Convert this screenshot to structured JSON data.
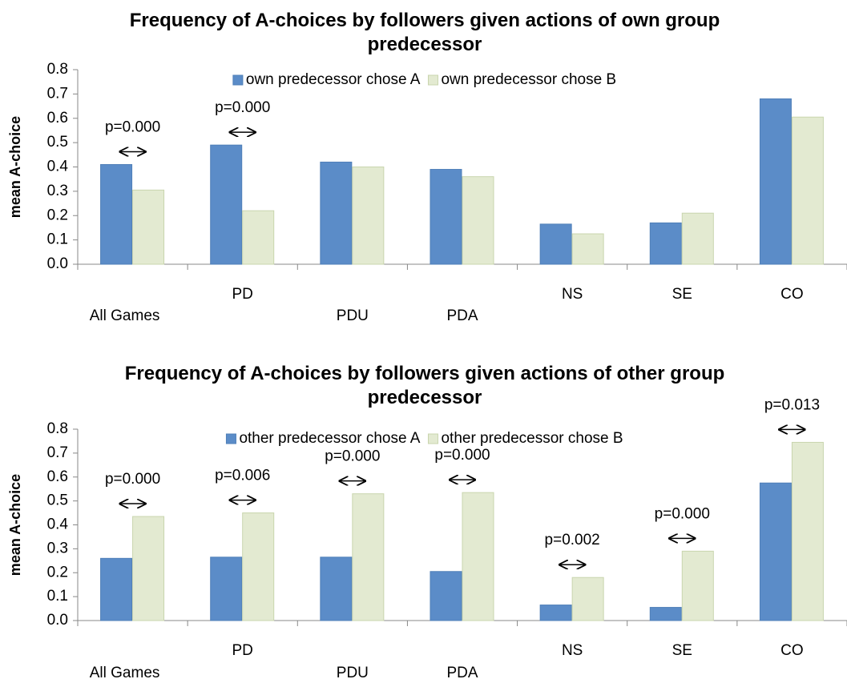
{
  "chart_data": [
    {
      "type": "bar",
      "title": "Frequency of A-choices by followers given actions of own group predecessor",
      "y_label": "mean A-choice",
      "categories": [
        "All Games",
        "PD",
        "PDU",
        "PDA",
        "NS",
        "SE",
        "CO"
      ],
      "series": [
        {
          "name": "own predecessor chose A",
          "color": "#5b8cc8",
          "values": [
            0.41,
            0.49,
            0.42,
            0.39,
            0.165,
            0.17,
            0.68
          ]
        },
        {
          "name": "own predecessor chose B",
          "color": "#e3ead1",
          "values": [
            0.305,
            0.22,
            0.4,
            0.36,
            0.125,
            0.21,
            0.605
          ]
        }
      ],
      "annotations": [
        "p=0.000",
        "p=0.000",
        null,
        null,
        null,
        null,
        null
      ],
      "ylim": [
        0,
        0.8
      ],
      "yticks": [
        {
          "value": 0,
          "label": "0.0"
        },
        0.1,
        0.2,
        0.3,
        0.4,
        0.5,
        0.6,
        0.7,
        0.8
      ],
      "grid": false
    },
    {
      "type": "bar",
      "title": "Frequency of A-choices by followers given actions of other group predecessor",
      "y_label": "mean A-choice",
      "categories": [
        "All Games",
        "PD",
        "PDU",
        "PDA",
        "NS",
        "SE",
        "CO"
      ],
      "series": [
        {
          "name": "other predecessor chose A",
          "color": "#5b8cc8",
          "values": [
            0.26,
            0.265,
            0.265,
            0.205,
            0.065,
            0.055,
            0.575
          ]
        },
        {
          "name": "other predecessor chose B",
          "color": "#e3ead1",
          "values": [
            0.435,
            0.45,
            0.53,
            0.535,
            0.18,
            0.29,
            0.745
          ]
        }
      ],
      "annotations": [
        "p=0.000",
        "p=0.006",
        "p=0.000",
        "p=0.000",
        "p=0.002",
        "p=0.000",
        "p=0.013"
      ],
      "ylim": [
        0,
        0.8
      ],
      "yticks": [
        {
          "value": 0,
          "label": "0.0"
        },
        0.1,
        0.2,
        0.3,
        0.4,
        0.5,
        0.6,
        0.7,
        0.8
      ],
      "grid": false
    }
  ]
}
